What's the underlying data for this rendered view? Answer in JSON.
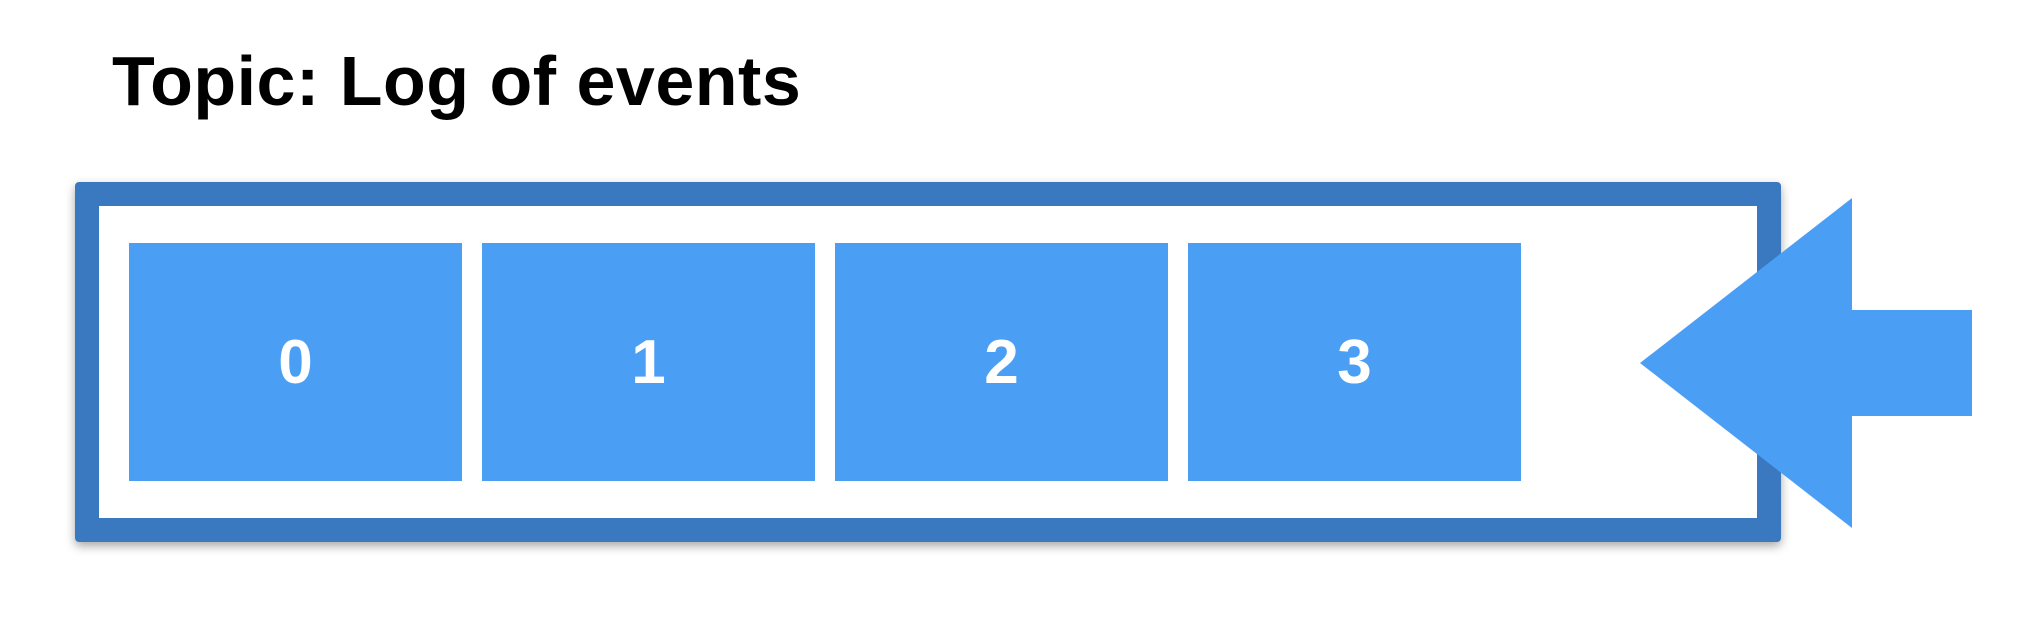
{
  "diagram": {
    "title": "Topic: Log of events",
    "events": [
      "0",
      "1",
      "2",
      "3"
    ],
    "colors": {
      "box_border": "#3a79c0",
      "event_fill": "#4a9ff5",
      "event_text": "#ffffff",
      "arrow": "#4a9ff5"
    },
    "arrow_icon": "arrow-left-icon"
  }
}
